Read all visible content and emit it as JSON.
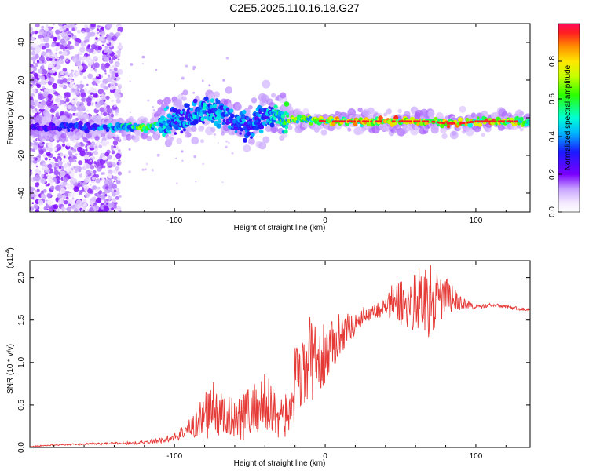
{
  "title": "C2E5.2025.110.16.18.G27",
  "colors": {
    "snr_line": "#e53935",
    "noise_dots": "#8a2be2",
    "background": "#ffffff"
  },
  "chart_data": [
    {
      "type": "heatmap",
      "xlabel": "Height of straight line (km)",
      "ylabel": "Frequency (Hz)",
      "xlim": [
        -196,
        136
      ],
      "ylim": [
        -50,
        50
      ],
      "xticks": [
        -100,
        0,
        100
      ],
      "yticks": [
        -40,
        -20,
        0,
        20,
        40
      ],
      "colorbar": {
        "label": "Normalized spectral amplitude",
        "range": [
          0,
          1
        ],
        "ticks": [
          0.0,
          0.2,
          0.4,
          0.6,
          0.8
        ],
        "tick_labels": [
          "0.0",
          "0.2",
          "0.4",
          "0.6",
          "0.8"
        ],
        "colormap": "rainbow (white at 0)"
      },
      "ridge": [
        {
          "x": -196,
          "y": -5,
          "amp": 0.3
        },
        {
          "x": -165,
          "y": -5,
          "amp": 0.35
        },
        {
          "x": -145,
          "y": -5,
          "amp": 0.45
        },
        {
          "x": -130,
          "y": -5,
          "amp": 0.6
        },
        {
          "x": -120,
          "y": -5,
          "amp": 0.7
        },
        {
          "x": -110,
          "y": -4,
          "amp": 0.55
        },
        {
          "x": -100,
          "y": -2,
          "amp": 0.45
        },
        {
          "x": -90,
          "y": 1,
          "amp": 0.45
        },
        {
          "x": -80,
          "y": 4,
          "amp": 0.5
        },
        {
          "x": -70,
          "y": 3,
          "amp": 0.45
        },
        {
          "x": -60,
          "y": -2,
          "amp": 0.4
        },
        {
          "x": -50,
          "y": -4,
          "amp": 0.45
        },
        {
          "x": -40,
          "y": 2,
          "amp": 0.45
        },
        {
          "x": -30,
          "y": 0,
          "amp": 0.6
        },
        {
          "x": -20,
          "y": -1,
          "amp": 0.75
        },
        {
          "x": -10,
          "y": -1,
          "amp": 0.7
        },
        {
          "x": 0,
          "y": -2,
          "amp": 0.85
        },
        {
          "x": 10,
          "y": -2,
          "amp": 0.85
        },
        {
          "x": 20,
          "y": -2,
          "amp": 0.9
        },
        {
          "x": 30,
          "y": -2,
          "amp": 0.9
        },
        {
          "x": 40,
          "y": -2,
          "amp": 0.9
        },
        {
          "x": 50,
          "y": -2,
          "amp": 0.9
        },
        {
          "x": 60,
          "y": -2,
          "amp": 0.85
        },
        {
          "x": 70,
          "y": -2,
          "amp": 0.8
        },
        {
          "x": 80,
          "y": -3,
          "amp": 0.9
        },
        {
          "x": 90,
          "y": -3,
          "amp": 0.9
        },
        {
          "x": 100,
          "y": -2,
          "amp": 0.8
        },
        {
          "x": 110,
          "y": -2,
          "amp": 0.95
        },
        {
          "x": 120,
          "y": -2,
          "amp": 0.85
        },
        {
          "x": 136,
          "y": -2,
          "amp": 0.7
        }
      ]
    },
    {
      "type": "line",
      "xlabel": "Height of straight line (km)",
      "ylabel": "SNR (10 * v/v)",
      "y_multiplier_label": "(x10",
      "y_multiplier_exp": "4",
      "xlim": [
        -196,
        136
      ],
      "ylim": [
        0,
        2.2
      ],
      "xticks": [
        -100,
        0,
        100
      ],
      "yticks": [
        0.0,
        0.5,
        1.0,
        1.5,
        2.0
      ],
      "ytick_labels": [
        "0.0",
        "0.5",
        "1.0",
        "1.5",
        "2.0"
      ],
      "series": [
        {
          "x": [
            -196,
            -180,
            -160,
            -140,
            -130,
            -120,
            -110,
            -100,
            -95,
            -90,
            -85,
            -80,
            -75,
            -70,
            -65,
            -60,
            -55,
            -50,
            -45,
            -40,
            -35,
            -30,
            -25,
            -20,
            -15,
            -10,
            -5,
            0,
            5,
            10,
            15,
            20,
            25,
            30,
            35,
            40,
            45,
            50,
            55,
            60,
            65,
            70,
            75,
            80,
            85,
            90,
            95,
            100,
            110,
            120,
            130,
            136
          ],
          "y": [
            0.01,
            0.03,
            0.04,
            0.05,
            0.05,
            0.06,
            0.08,
            0.12,
            0.18,
            0.22,
            0.3,
            0.38,
            0.45,
            0.4,
            0.35,
            0.38,
            0.4,
            0.42,
            0.48,
            0.5,
            0.45,
            0.4,
            0.35,
            0.7,
            0.85,
            1.05,
            1.0,
            1.1,
            1.2,
            1.35,
            1.4,
            1.45,
            1.55,
            1.6,
            1.62,
            1.65,
            1.7,
            1.72,
            1.65,
            1.75,
            1.8,
            1.7,
            1.72,
            1.78,
            1.75,
            1.7,
            1.68,
            1.65,
            1.68,
            1.66,
            1.63,
            1.62
          ],
          "amp": [
            0.005,
            0.008,
            0.01,
            0.015,
            0.02,
            0.02,
            0.03,
            0.05,
            0.08,
            0.12,
            0.2,
            0.28,
            0.35,
            0.28,
            0.22,
            0.28,
            0.32,
            0.3,
            0.35,
            0.4,
            0.35,
            0.3,
            0.25,
            0.5,
            0.45,
            0.5,
            0.45,
            0.35,
            0.3,
            0.25,
            0.18,
            0.12,
            0.1,
            0.1,
            0.1,
            0.12,
            0.25,
            0.3,
            0.3,
            0.35,
            0.4,
            0.45,
            0.3,
            0.25,
            0.15,
            0.08,
            0.05,
            0.03,
            0.02,
            0.02,
            0.02,
            0.02
          ]
        }
      ]
    }
  ]
}
